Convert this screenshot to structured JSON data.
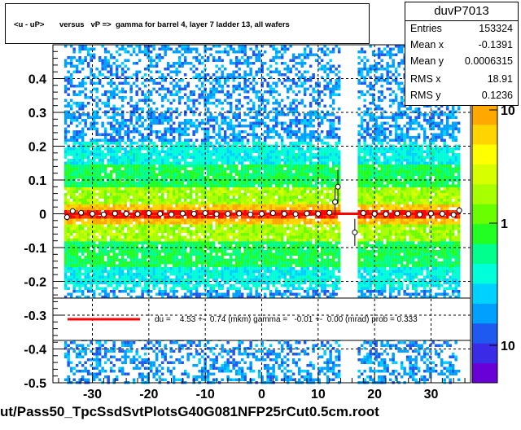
{
  "title": "<u - uP>       versus   vP =>  gamma for barrel 4, layer 7 ladder 13, all wafers",
  "stats": {
    "name": "duvP7013",
    "rows": [
      {
        "label": "Entries",
        "value": "153324"
      },
      {
        "label": "Mean x",
        "value": "-0.1391"
      },
      {
        "label": "Mean y",
        "value": "0.0006315"
      },
      {
        "label": "RMS x",
        "value": "18.91"
      },
      {
        "label": "RMS y",
        "value": "0.1236"
      }
    ]
  },
  "fit_legend": "du =    4.53 +-  0.74 (mkm) gamma =   -0.01 +-  0.00 (mrad) prob = 0.333",
  "footer_filename": "ut/Pass50_TpcSsdSvtPlotsG40G081NFP25rCut0.5cm.root",
  "colors": {
    "fit_line": "#ff0000",
    "grid": "#000000",
    "palette": [
      "#6a00d8",
      "#3a2be6",
      "#1e5af0",
      "#00a0ff",
      "#00d2ff",
      "#00ffd8",
      "#00ff8c",
      "#22ff22",
      "#6aff00",
      "#a8ff00",
      "#d8ff00",
      "#ffff00",
      "#ffd400",
      "#ffa800",
      "#ff7c00",
      "#ff4400",
      "#ff0000"
    ]
  },
  "chart_data": {
    "type": "heatmap",
    "xlim": [
      -37,
      37
    ],
    "ylim": [
      -0.5,
      0.5
    ],
    "xticks": [
      -30,
      -20,
      -10,
      0,
      10,
      20,
      30
    ],
    "yticks": [
      -0.5,
      -0.4,
      -0.3,
      -0.2,
      -0.1,
      0,
      0.1,
      0.2,
      0.3,
      0.4
    ],
    "ytick_labels": [
      "-0.5",
      "-0.4",
      "-0.3",
      "-0.2",
      "-0.1",
      "0",
      "0.1",
      "0.2",
      "0.3",
      "0.4"
    ],
    "xtick_labels": [
      "-30",
      "-20",
      "-10",
      "0",
      "10",
      "20",
      "30"
    ],
    "grid": true,
    "occupied_x_ranges": [
      [
        -35,
        13.5
      ],
      [
        17,
        35
      ]
    ],
    "z_scale": "log",
    "z_tick_labels": [
      "10",
      "1",
      "10"
    ],
    "profile_points": [
      {
        "x": -34.5,
        "y": -0.01,
        "err": 0.01
      },
      {
        "x": -33.5,
        "y": 0.008,
        "err": 0.006
      },
      {
        "x": -32,
        "y": 0.003,
        "err": 0.004
      },
      {
        "x": -30,
        "y": 0.0,
        "err": 0.003
      },
      {
        "x": -28,
        "y": -0.002,
        "err": 0.003
      },
      {
        "x": -26,
        "y": 0.001,
        "err": 0.003
      },
      {
        "x": -24,
        "y": 0.0,
        "err": 0.003
      },
      {
        "x": -22,
        "y": -0.001,
        "err": 0.003
      },
      {
        "x": -20,
        "y": 0.002,
        "err": 0.003
      },
      {
        "x": -18,
        "y": 0.0,
        "err": 0.003
      },
      {
        "x": -16,
        "y": -0.002,
        "err": 0.003
      },
      {
        "x": -14,
        "y": 0.001,
        "err": 0.003
      },
      {
        "x": -12,
        "y": 0.0,
        "err": 0.003
      },
      {
        "x": -10,
        "y": 0.002,
        "err": 0.003
      },
      {
        "x": -8,
        "y": -0.001,
        "err": 0.003
      },
      {
        "x": -6,
        "y": 0.0,
        "err": 0.003
      },
      {
        "x": -4,
        "y": 0.001,
        "err": 0.003
      },
      {
        "x": -2,
        "y": -0.002,
        "err": 0.003
      },
      {
        "x": 0,
        "y": 0.0,
        "err": 0.003
      },
      {
        "x": 2,
        "y": 0.002,
        "err": 0.003
      },
      {
        "x": 4,
        "y": 0.0,
        "err": 0.003
      },
      {
        "x": 6,
        "y": -0.001,
        "err": 0.003
      },
      {
        "x": 8,
        "y": 0.001,
        "err": 0.003
      },
      {
        "x": 10,
        "y": 0.0,
        "err": 0.004
      },
      {
        "x": 12,
        "y": 0.003,
        "err": 0.006
      },
      {
        "x": 13,
        "y": 0.035,
        "err": 0.04
      },
      {
        "x": 13.5,
        "y": 0.08,
        "err": 0.05
      },
      {
        "x": 16.5,
        "y": -0.055,
        "err": 0.04
      },
      {
        "x": 18,
        "y": 0.002,
        "err": 0.005
      },
      {
        "x": 20,
        "y": 0.0,
        "err": 0.003
      },
      {
        "x": 22,
        "y": -0.001,
        "err": 0.003
      },
      {
        "x": 24,
        "y": 0.001,
        "err": 0.003
      },
      {
        "x": 26,
        "y": 0.0,
        "err": 0.003
      },
      {
        "x": 28,
        "y": -0.002,
        "err": 0.003
      },
      {
        "x": 30,
        "y": 0.001,
        "err": 0.003
      },
      {
        "x": 32,
        "y": 0.0,
        "err": 0.003
      },
      {
        "x": 34,
        "y": -0.003,
        "err": 0.004
      },
      {
        "x": 35,
        "y": 0.01,
        "err": 0.01
      }
    ],
    "fit_line": {
      "y": 0.0,
      "x_range": [
        -35,
        35
      ]
    }
  }
}
